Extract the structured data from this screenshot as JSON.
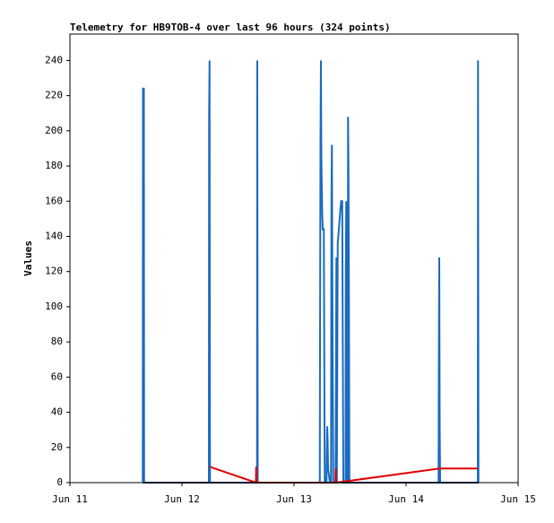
{
  "chart_data": {
    "type": "line",
    "title": "Telemetry for HB9TOB-4 over last 96 hours (324 points)",
    "y_label": "Values",
    "xlim": [
      11,
      15
    ],
    "xticks": [
      {
        "value": 11,
        "label": "Jun 11"
      },
      {
        "value": 12,
        "label": "Jun 12"
      },
      {
        "value": 13,
        "label": "Jun 13"
      },
      {
        "value": 14,
        "label": "Jun 14"
      },
      {
        "value": 15,
        "label": "Jun 15"
      }
    ],
    "ylim": [
      0,
      255
    ],
    "yticks": [
      0,
      20,
      40,
      60,
      80,
      100,
      120,
      140,
      160,
      180,
      200,
      220,
      240
    ],
    "grid": false,
    "series": [
      {
        "color": "#1a6bc0",
        "x": [
          11.65,
          11.652,
          11.66,
          11.662,
          12.24,
          12.242,
          12.246,
          12.25,
          12.67,
          12.672,
          12.676,
          13.23,
          13.232,
          13.236,
          13.24,
          13.244,
          13.248,
          13.252,
          13.256,
          13.266,
          13.27,
          13.274,
          13.29,
          13.292,
          13.296,
          13.3,
          13.304,
          13.32,
          13.33,
          13.334,
          13.338,
          13.342,
          13.35,
          13.37,
          13.374,
          13.378,
          13.382,
          13.39,
          13.4,
          13.41,
          13.42,
          13.43,
          13.44,
          13.46,
          13.462,
          13.466,
          13.47,
          13.474,
          13.48,
          13.482,
          13.486,
          13.49,
          13.494,
          14.29,
          14.292,
          14.296,
          14.3,
          14.304,
          14.64,
          14.642,
          14.646
        ],
        "values": [
          0,
          224,
          224,
          0,
          0,
          208,
          240,
          0,
          0,
          240,
          0,
          0,
          80,
          192,
          240,
          184,
          168,
          152,
          144,
          144,
          72,
          0,
          0,
          16,
          32,
          24,
          8,
          0,
          0,
          160,
          192,
          112,
          0,
          0,
          48,
          128,
          0,
          136,
          144,
          152,
          160,
          160,
          0,
          0,
          120,
          160,
          40,
          0,
          0,
          208,
          176,
          104,
          0,
          0,
          64,
          128,
          32,
          0,
          0,
          240,
          0
        ]
      },
      {
        "color": "#e00000",
        "x": [
          12.248,
          12.66,
          12.662,
          12.668,
          13.37,
          13.372,
          13.376,
          14.3,
          14.64
        ],
        "values": [
          9,
          0,
          9,
          0,
          0,
          8,
          0,
          8,
          8
        ]
      },
      {
        "color": "#000000",
        "x": [
          11.65,
          14.65
        ],
        "values": [
          0,
          0
        ]
      }
    ]
  }
}
